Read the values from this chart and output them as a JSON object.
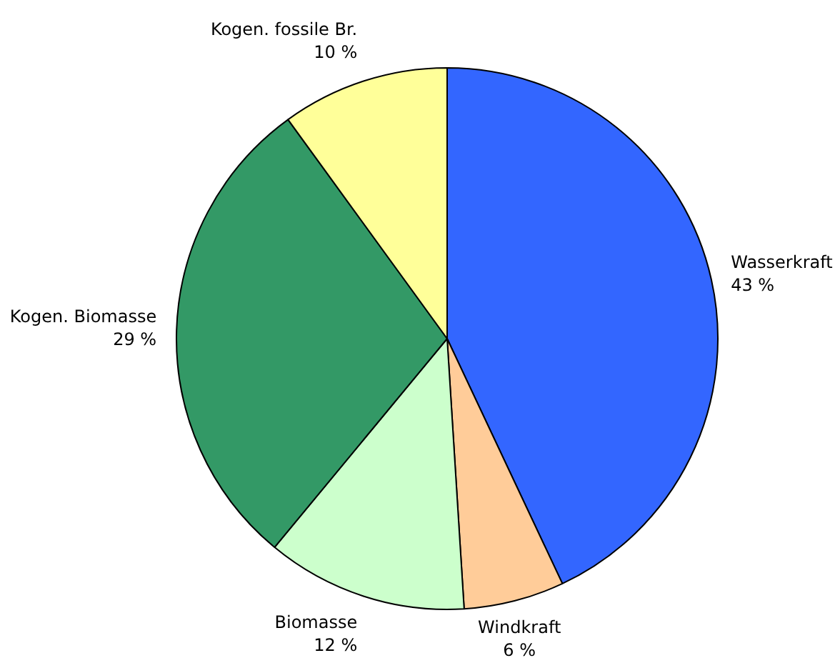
{
  "chart_data": {
    "type": "pie",
    "categories": [
      "Wasserkraft",
      "Windkraft",
      "Biomasse",
      "Kogen. Biomasse",
      "Kogen. fossile Br."
    ],
    "values": [
      43,
      6,
      12,
      29,
      10
    ],
    "value_labels": [
      "43 %",
      "6 %",
      "12 %",
      "29 %",
      "10 %"
    ],
    "colors": [
      "#3366ff",
      "#ffcc99",
      "#ccffcc",
      "#339966",
      "#ffff99"
    ]
  }
}
